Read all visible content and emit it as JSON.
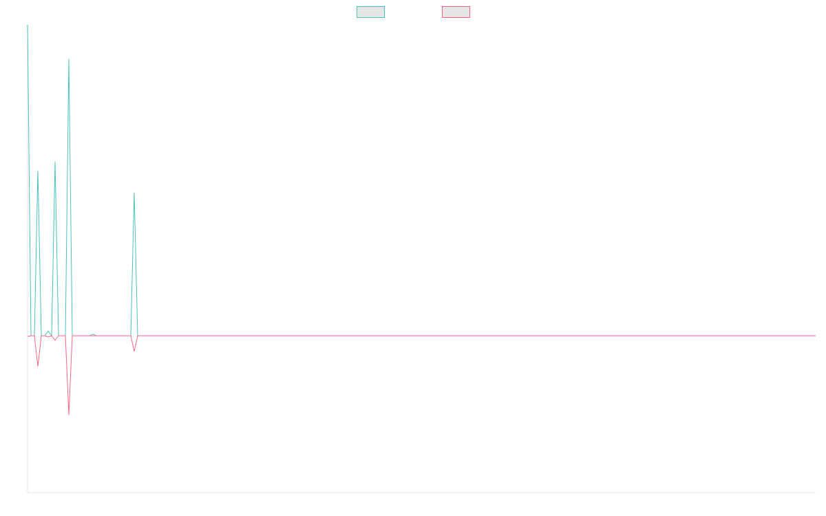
{
  "chart_data": {
    "type": "line",
    "title": "",
    "xlabel": "",
    "ylabel": "",
    "grid": false,
    "legend": {
      "position": "top-center",
      "show_labels": false
    },
    "ylim": [
      -1,
      1
    ],
    "x_point_count": 230,
    "series": [
      {
        "color": "#4bc0c0",
        "fill": "#e6e6e6",
        "values": [
          1.0,
          0.0,
          0.0,
          0.53,
          0.0,
          0.0,
          0.015,
          0.0,
          0.56,
          0.0,
          0.0,
          0.0,
          0.89,
          0.0,
          0.0,
          0.0,
          0.0,
          0.0,
          0.0,
          0.005,
          0.0,
          0.0,
          0.0,
          0.0,
          0.0,
          0.0,
          0.0,
          0.0,
          0.0,
          0.0,
          0.0,
          0.46,
          0.0
        ]
      },
      {
        "color": "#ff6384",
        "fill": "#e6e6e6",
        "values": [
          -0.005,
          0.0,
          0.0,
          -0.195,
          0.0,
          0.0,
          -0.007,
          0.0,
          -0.03,
          0.0,
          0.0,
          0.0,
          -0.505,
          0.0,
          0.0,
          0.0,
          0.0,
          0.0,
          0.0,
          0.0,
          0.0,
          0.0,
          0.0,
          0.0,
          0.0,
          0.0,
          0.0,
          0.0,
          0.0,
          0.0,
          0.0,
          -0.1,
          0.0
        ]
      }
    ]
  }
}
